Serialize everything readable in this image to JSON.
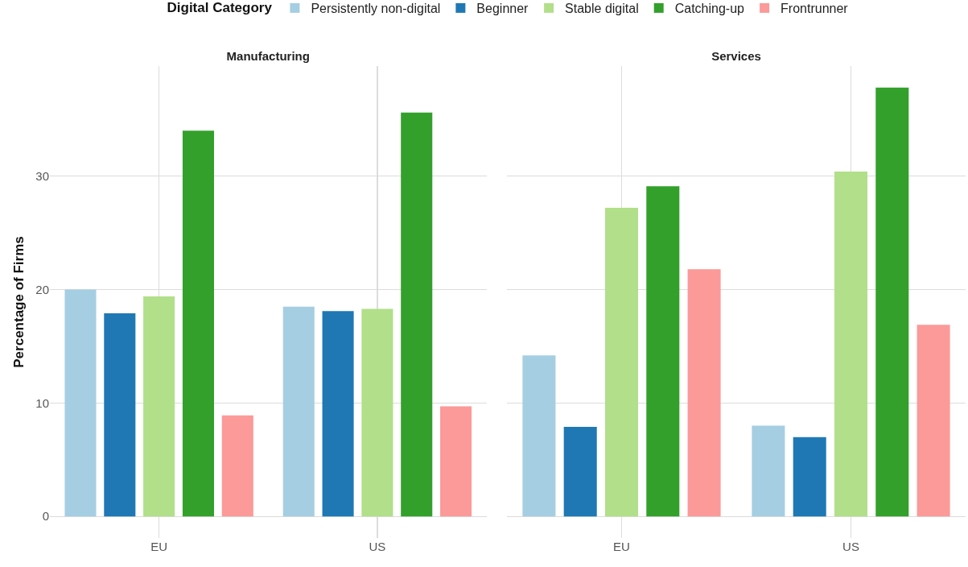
{
  "chart_data": [
    {
      "type": "bar",
      "title": "Manufacturing",
      "ylabel": "Percentage of Firms",
      "legend_title": "Digital Category",
      "legend": "top",
      "grid": true,
      "categories": [
        "EU",
        "US"
      ],
      "ylim": [
        -1.9,
        39.7
      ],
      "yticks": [
        0,
        10,
        20,
        30
      ],
      "series": [
        {
          "name": "Persistently non-digital",
          "color": "#a6cee3",
          "values": [
            20.0,
            18.5
          ]
        },
        {
          "name": "Beginner",
          "color": "#1f78b4",
          "values": [
            17.9,
            18.1
          ]
        },
        {
          "name": "Stable digital",
          "color": "#b2df8a",
          "values": [
            19.4,
            18.3
          ]
        },
        {
          "name": "Catching-up",
          "color": "#33a02c",
          "values": [
            34.0,
            35.6
          ]
        },
        {
          "name": "Frontrunner",
          "color": "#fb9a99",
          "values": [
            8.9,
            9.7
          ]
        }
      ]
    },
    {
      "type": "bar",
      "title": "Services",
      "grid": true,
      "tick_labels": "x",
      "categories": [
        "EU",
        "US"
      ],
      "ylim": [
        -1.9,
        39.7
      ],
      "yticks": [
        0,
        10,
        20,
        30
      ],
      "series": [
        {
          "color": "#a6cee3",
          "values": [
            14.2,
            8.0
          ]
        },
        {
          "color": "#1f78b4",
          "values": [
            7.9,
            7.0
          ]
        },
        {
          "color": "#b2df8a",
          "values": [
            27.2,
            30.4
          ]
        },
        {
          "color": "#33a02c",
          "values": [
            29.1,
            37.8
          ]
        },
        {
          "color": "#fb9a99",
          "values": [
            21.8,
            16.9
          ]
        }
      ]
    }
  ]
}
